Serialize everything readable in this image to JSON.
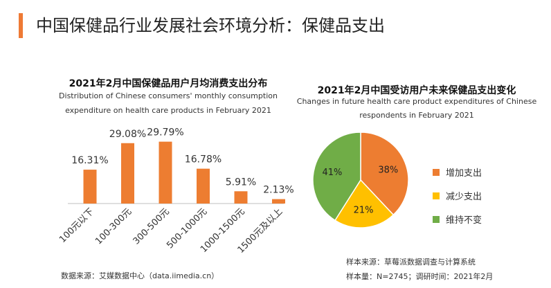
{
  "header": {
    "title": "中国保健品行业发展社会环境分析：保健品支出"
  },
  "colors": {
    "accent": "#ee7a35",
    "bar": "#ed7d31",
    "increase": "#ed7d31",
    "decrease": "#ffc000",
    "same": "#70ad47"
  },
  "chart_data": [
    {
      "type": "bar",
      "title": "2021年2月中国保健品用户月均消费支出分布",
      "subtitle_line1": "Distribution of Chinese consumers' monthly consumption",
      "subtitle_line2": "expenditure on health care products in February 2021",
      "categories": [
        "100元以下",
        "100-300元",
        "300-500元",
        "500-1000元",
        "1000-1500元",
        "1500元及以上"
      ],
      "values": [
        16.31,
        29.08,
        29.79,
        16.78,
        5.91,
        2.13
      ],
      "labels": [
        "16.31%",
        "29.08%",
        "29.79%",
        "16.78%",
        "5.91%",
        "2.13%"
      ],
      "unit": "%",
      "ylim": [
        0,
        30
      ]
    },
    {
      "type": "pie",
      "title": "2021年2月中国受访用户未来保健品支出变化",
      "subtitle_line1": "Changes in future health care product expenditures of Chinese",
      "subtitle_line2": "respondents in February 2021",
      "slices": [
        {
          "name": "增加支出",
          "value": 38,
          "label": "38%"
        },
        {
          "name": "减少支出",
          "value": 21,
          "label": "21%"
        },
        {
          "name": "维持不变",
          "value": 41,
          "label": "41%"
        }
      ]
    }
  ],
  "footer": {
    "source": "数据来源：艾媒数据中心（data.iimedia.cn）",
    "sample_source": "样本来源：草莓派数据调查与计算系统",
    "sample_size": "样本量：N=2745；调研时间：2021年2月"
  }
}
